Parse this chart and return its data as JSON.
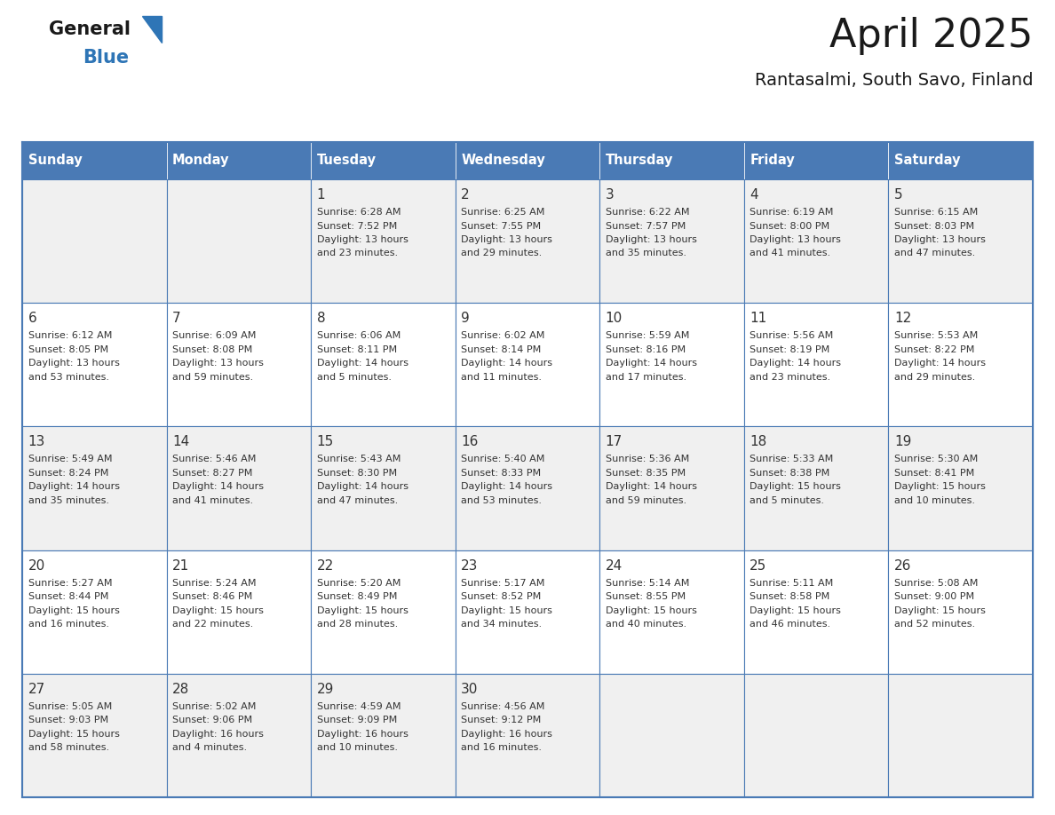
{
  "title": "April 2025",
  "subtitle": "Rantasalmi, South Savo, Finland",
  "days_of_week": [
    "Sunday",
    "Monday",
    "Tuesday",
    "Wednesday",
    "Thursday",
    "Friday",
    "Saturday"
  ],
  "header_bg": "#4a7ab5",
  "header_text": "#ffffff",
  "cell_bg_odd": "#f0f0f0",
  "cell_bg_even": "#ffffff",
  "cell_text": "#333333",
  "border_color": "#4a7ab5",
  "title_color": "#1a1a1a",
  "subtitle_color": "#1a1a1a",
  "logo_general_color": "#1a1a1a",
  "logo_blue_color": "#2E75B6",
  "weeks": [
    [
      {
        "day": null,
        "sunrise": null,
        "sunset": null,
        "daylight": null
      },
      {
        "day": null,
        "sunrise": null,
        "sunset": null,
        "daylight": null
      },
      {
        "day": 1,
        "sunrise": "6:28 AM",
        "sunset": "7:52 PM",
        "daylight": "13 hours and 23 minutes."
      },
      {
        "day": 2,
        "sunrise": "6:25 AM",
        "sunset": "7:55 PM",
        "daylight": "13 hours and 29 minutes."
      },
      {
        "day": 3,
        "sunrise": "6:22 AM",
        "sunset": "7:57 PM",
        "daylight": "13 hours and 35 minutes."
      },
      {
        "day": 4,
        "sunrise": "6:19 AM",
        "sunset": "8:00 PM",
        "daylight": "13 hours and 41 minutes."
      },
      {
        "day": 5,
        "sunrise": "6:15 AM",
        "sunset": "8:03 PM",
        "daylight": "13 hours and 47 minutes."
      }
    ],
    [
      {
        "day": 6,
        "sunrise": "6:12 AM",
        "sunset": "8:05 PM",
        "daylight": "13 hours and 53 minutes."
      },
      {
        "day": 7,
        "sunrise": "6:09 AM",
        "sunset": "8:08 PM",
        "daylight": "13 hours and 59 minutes."
      },
      {
        "day": 8,
        "sunrise": "6:06 AM",
        "sunset": "8:11 PM",
        "daylight": "14 hours and 5 minutes."
      },
      {
        "day": 9,
        "sunrise": "6:02 AM",
        "sunset": "8:14 PM",
        "daylight": "14 hours and 11 minutes."
      },
      {
        "day": 10,
        "sunrise": "5:59 AM",
        "sunset": "8:16 PM",
        "daylight": "14 hours and 17 minutes."
      },
      {
        "day": 11,
        "sunrise": "5:56 AM",
        "sunset": "8:19 PM",
        "daylight": "14 hours and 23 minutes."
      },
      {
        "day": 12,
        "sunrise": "5:53 AM",
        "sunset": "8:22 PM",
        "daylight": "14 hours and 29 minutes."
      }
    ],
    [
      {
        "day": 13,
        "sunrise": "5:49 AM",
        "sunset": "8:24 PM",
        "daylight": "14 hours and 35 minutes."
      },
      {
        "day": 14,
        "sunrise": "5:46 AM",
        "sunset": "8:27 PM",
        "daylight": "14 hours and 41 minutes."
      },
      {
        "day": 15,
        "sunrise": "5:43 AM",
        "sunset": "8:30 PM",
        "daylight": "14 hours and 47 minutes."
      },
      {
        "day": 16,
        "sunrise": "5:40 AM",
        "sunset": "8:33 PM",
        "daylight": "14 hours and 53 minutes."
      },
      {
        "day": 17,
        "sunrise": "5:36 AM",
        "sunset": "8:35 PM",
        "daylight": "14 hours and 59 minutes."
      },
      {
        "day": 18,
        "sunrise": "5:33 AM",
        "sunset": "8:38 PM",
        "daylight": "15 hours and 5 minutes."
      },
      {
        "day": 19,
        "sunrise": "5:30 AM",
        "sunset": "8:41 PM",
        "daylight": "15 hours and 10 minutes."
      }
    ],
    [
      {
        "day": 20,
        "sunrise": "5:27 AM",
        "sunset": "8:44 PM",
        "daylight": "15 hours and 16 minutes."
      },
      {
        "day": 21,
        "sunrise": "5:24 AM",
        "sunset": "8:46 PM",
        "daylight": "15 hours and 22 minutes."
      },
      {
        "day": 22,
        "sunrise": "5:20 AM",
        "sunset": "8:49 PM",
        "daylight": "15 hours and 28 minutes."
      },
      {
        "day": 23,
        "sunrise": "5:17 AM",
        "sunset": "8:52 PM",
        "daylight": "15 hours and 34 minutes."
      },
      {
        "day": 24,
        "sunrise": "5:14 AM",
        "sunset": "8:55 PM",
        "daylight": "15 hours and 40 minutes."
      },
      {
        "day": 25,
        "sunrise": "5:11 AM",
        "sunset": "8:58 PM",
        "daylight": "15 hours and 46 minutes."
      },
      {
        "day": 26,
        "sunrise": "5:08 AM",
        "sunset": "9:00 PM",
        "daylight": "15 hours and 52 minutes."
      }
    ],
    [
      {
        "day": 27,
        "sunrise": "5:05 AM",
        "sunset": "9:03 PM",
        "daylight": "15 hours and 58 minutes."
      },
      {
        "day": 28,
        "sunrise": "5:02 AM",
        "sunset": "9:06 PM",
        "daylight": "16 hours and 4 minutes."
      },
      {
        "day": 29,
        "sunrise": "4:59 AM",
        "sunset": "9:09 PM",
        "daylight": "16 hours and 10 minutes."
      },
      {
        "day": 30,
        "sunrise": "4:56 AM",
        "sunset": "9:12 PM",
        "daylight": "16 hours and 16 minutes."
      },
      {
        "day": null,
        "sunrise": null,
        "sunset": null,
        "daylight": null
      },
      {
        "day": null,
        "sunrise": null,
        "sunset": null,
        "daylight": null
      },
      {
        "day": null,
        "sunrise": null,
        "sunset": null,
        "daylight": null
      }
    ]
  ]
}
